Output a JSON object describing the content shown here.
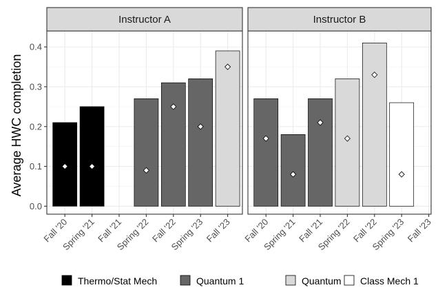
{
  "chart_data": {
    "type": "bar",
    "ylabel": "Average HWC completion",
    "ylim": [
      -0.02,
      0.44
    ],
    "yticks": [
      0.0,
      0.1,
      0.2,
      0.3,
      0.4
    ],
    "ytick_labels": [
      "0.0",
      "0.1",
      "0.2",
      "0.3",
      "0.4"
    ],
    "categories": [
      "Fall '20",
      "Spring '21",
      "Fall '21",
      "Spring '22",
      "Fall '22",
      "Spring '23",
      "Fall '23"
    ],
    "grid": true,
    "legend_position": "bottom",
    "legend": [
      {
        "name": "Thermo/Stat Mech",
        "color": "#000000"
      },
      {
        "name": "Quantum 1",
        "color": "#666666"
      },
      {
        "name": "Quantum 2",
        "color": "#d9d9d9"
      },
      {
        "name": "Class Mech 1",
        "color": "#ffffff"
      }
    ],
    "panels": [
      {
        "title": "Instructor A",
        "bars": [
          {
            "category": "Fall '20",
            "course": "Thermo/Stat Mech",
            "value": 0.21,
            "point": 0.1
          },
          {
            "category": "Spring '21",
            "course": "Thermo/Stat Mech",
            "value": 0.25,
            "point": 0.1
          },
          {
            "category": "Spring '22",
            "course": "Quantum 1",
            "value": 0.27,
            "point": 0.09
          },
          {
            "category": "Fall '22",
            "course": "Quantum 1",
            "value": 0.31,
            "point": 0.25
          },
          {
            "category": "Spring '23",
            "course": "Quantum 1",
            "value": 0.32,
            "point": 0.2
          },
          {
            "category": "Fall '23",
            "course": "Quantum 2",
            "value": 0.39,
            "point": 0.35
          }
        ]
      },
      {
        "title": "Instructor B",
        "bars": [
          {
            "category": "Fall '20",
            "course": "Quantum 1",
            "value": 0.27,
            "point": 0.17
          },
          {
            "category": "Spring '21",
            "course": "Quantum 1",
            "value": 0.18,
            "point": 0.08
          },
          {
            "category": "Fall '21",
            "course": "Quantum 1",
            "value": 0.27,
            "point": 0.21
          },
          {
            "category": "Spring '22",
            "course": "Quantum 2",
            "value": 0.32,
            "point": 0.17
          },
          {
            "category": "Fall '22",
            "course": "Quantum 2",
            "value": 0.41,
            "point": 0.33
          },
          {
            "category": "Spring '23",
            "course": "Class Mech 1",
            "value": 0.26,
            "point": 0.08
          }
        ]
      }
    ]
  }
}
